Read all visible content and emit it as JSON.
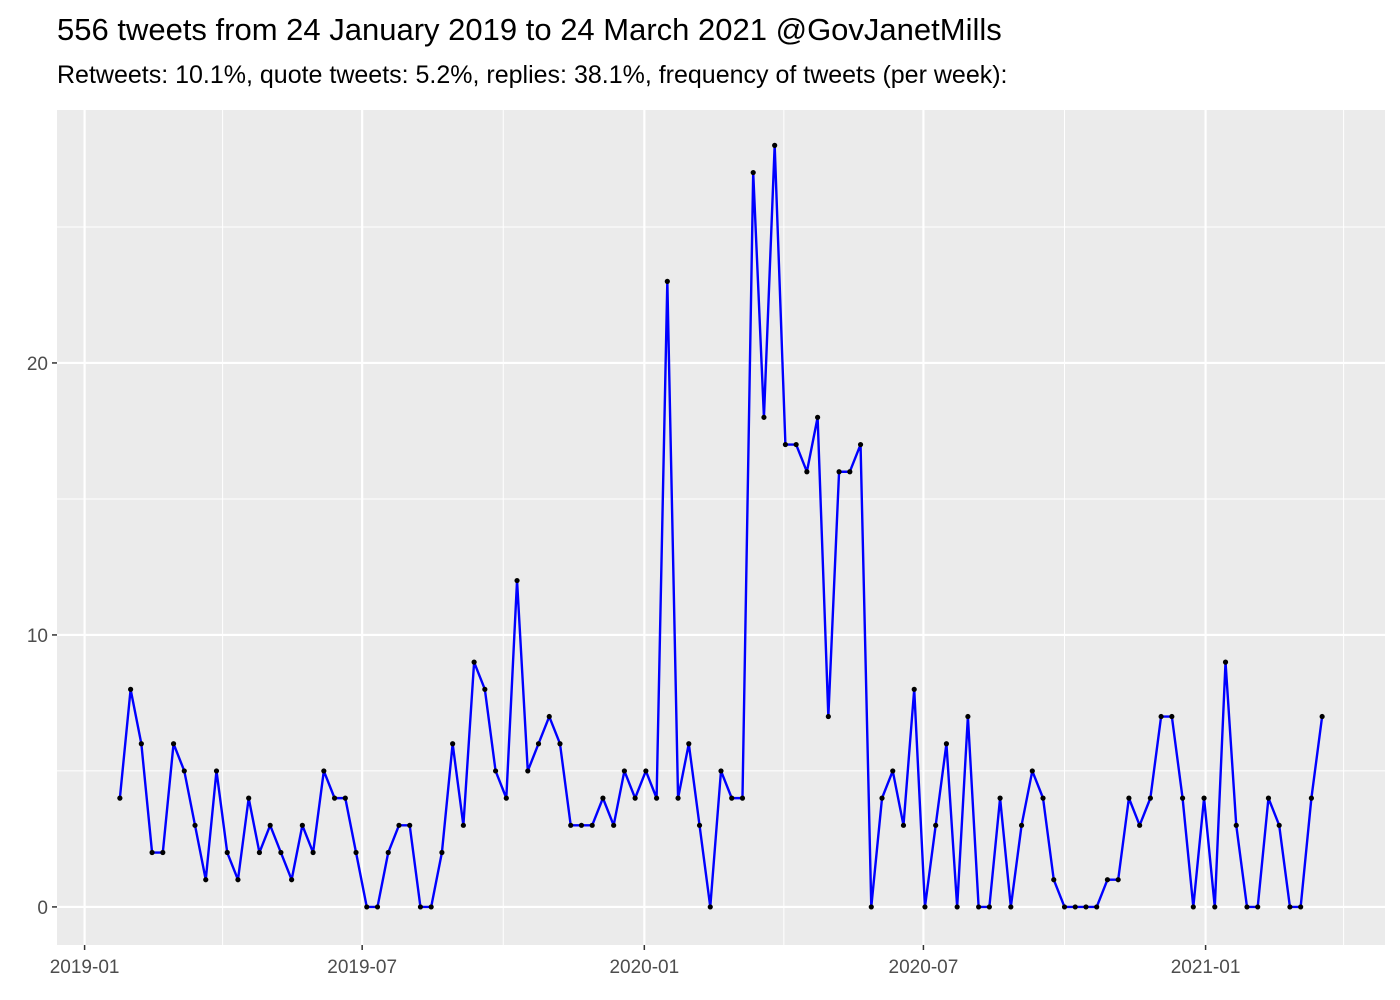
{
  "chart_data": {
    "type": "line",
    "title": "556 tweets from 24 January 2019 to 24 March 2021 @GovJanetMills",
    "subtitle": "Retweets: 10.1%, quote tweets: 5.2%, replies: 38.1%, frequency of tweets (per week):",
    "xlabel": "",
    "ylabel": "",
    "x_ticks": [
      "2019-01",
      "2019-07",
      "2020-01",
      "2020-07",
      "2021-01"
    ],
    "y_ticks": [
      0,
      10,
      20
    ],
    "xlim": [
      "2018-12-14",
      "2021-04-28"
    ],
    "ylim": [
      -1.4,
      29.3
    ],
    "grid": true,
    "line_color": "#0000FF",
    "point_color": "#000000",
    "panel_background": "#EBEBEB",
    "x": [
      "2019-01-24",
      "2019-01-31",
      "2019-02-07",
      "2019-02-14",
      "2019-02-21",
      "2019-02-28",
      "2019-03-07",
      "2019-03-14",
      "2019-03-21",
      "2019-03-28",
      "2019-04-04",
      "2019-04-11",
      "2019-04-18",
      "2019-04-25",
      "2019-05-02",
      "2019-05-09",
      "2019-05-16",
      "2019-05-23",
      "2019-05-30",
      "2019-06-06",
      "2019-06-13",
      "2019-06-20",
      "2019-06-27",
      "2019-07-04",
      "2019-07-11",
      "2019-07-18",
      "2019-07-25",
      "2019-08-01",
      "2019-08-08",
      "2019-08-15",
      "2019-08-22",
      "2019-08-29",
      "2019-09-05",
      "2019-09-12",
      "2019-09-19",
      "2019-09-26",
      "2019-10-03",
      "2019-10-10",
      "2019-10-17",
      "2019-10-24",
      "2019-10-31",
      "2019-11-07",
      "2019-11-14",
      "2019-11-21",
      "2019-11-28",
      "2019-12-05",
      "2019-12-12",
      "2019-12-19",
      "2019-12-26",
      "2020-01-02",
      "2020-01-09",
      "2020-01-16",
      "2020-01-23",
      "2020-01-30",
      "2020-02-06",
      "2020-02-13",
      "2020-02-20",
      "2020-02-27",
      "2020-03-05",
      "2020-03-12",
      "2020-03-19",
      "2020-03-26",
      "2020-04-02",
      "2020-04-09",
      "2020-04-16",
      "2020-04-23",
      "2020-04-30",
      "2020-05-07",
      "2020-05-14",
      "2020-05-21",
      "2020-05-28",
      "2020-06-04",
      "2020-06-11",
      "2020-06-18",
      "2020-06-25",
      "2020-07-02",
      "2020-07-09",
      "2020-07-16",
      "2020-07-23",
      "2020-07-30",
      "2020-08-06",
      "2020-08-13",
      "2020-08-20",
      "2020-08-27",
      "2020-09-03",
      "2020-09-10",
      "2020-09-17",
      "2020-09-24",
      "2020-10-01",
      "2020-10-08",
      "2020-10-15",
      "2020-10-22",
      "2020-10-29",
      "2020-11-05",
      "2020-11-12",
      "2020-11-19",
      "2020-11-26",
      "2020-12-03",
      "2020-12-10",
      "2020-12-17",
      "2020-12-24",
      "2020-12-31",
      "2021-01-07",
      "2021-01-14",
      "2021-01-21",
      "2021-01-28",
      "2021-02-04",
      "2021-02-11",
      "2021-02-18",
      "2021-02-25",
      "2021-03-04",
      "2021-03-11",
      "2021-03-18"
    ],
    "y": [
      4,
      8,
      6,
      2,
      2,
      6,
      5,
      3,
      1,
      5,
      2,
      1,
      4,
      2,
      3,
      2,
      1,
      3,
      2,
      5,
      4,
      4,
      2,
      0,
      0,
      2,
      3,
      3,
      0,
      0,
      2,
      6,
      3,
      9,
      8,
      5,
      4,
      12,
      5,
      6,
      7,
      6,
      3,
      3,
      3,
      4,
      3,
      5,
      4,
      5,
      4,
      23,
      4,
      6,
      3,
      0,
      5,
      4,
      4,
      27,
      18,
      28,
      17,
      17,
      16,
      18,
      7,
      16,
      16,
      17,
      0,
      4,
      5,
      3,
      8,
      0,
      3,
      6,
      0,
      7,
      0,
      0,
      4,
      0,
      3,
      5,
      4,
      1,
      0,
      0,
      0,
      0,
      1,
      1,
      4,
      3,
      4,
      7,
      7,
      4,
      0,
      4,
      0,
      9,
      3,
      0,
      0,
      4,
      3,
      0,
      0,
      4,
      7
    ]
  }
}
